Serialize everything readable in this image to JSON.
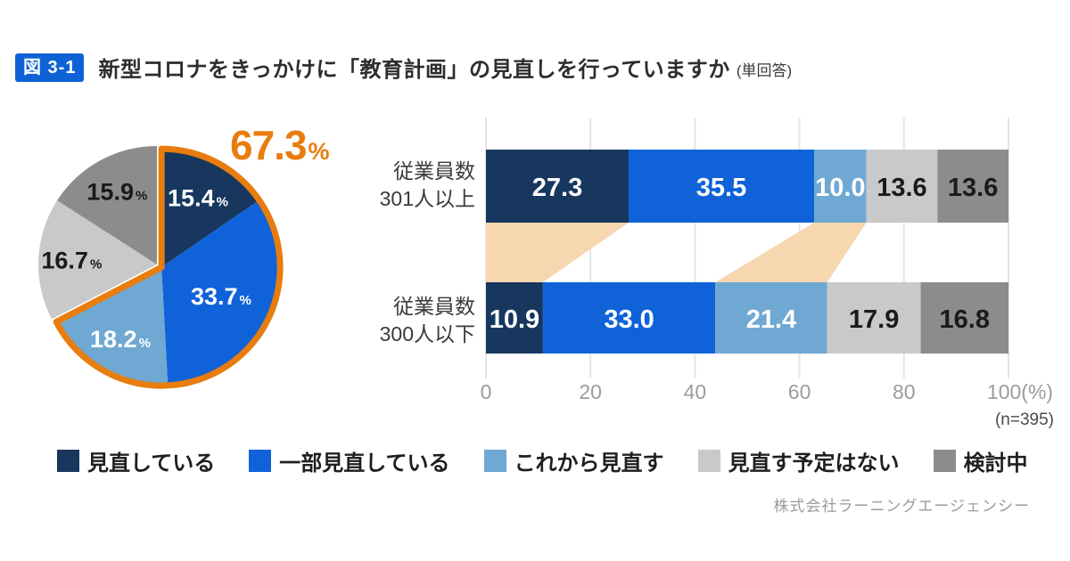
{
  "header": {
    "badge": "図 3-1",
    "title": "新型コロナをきっかけに「教育計画」の見直しを行っていますか",
    "suffix": "(単回答)"
  },
  "colors": {
    "navy": "#17375E",
    "blue": "#0F62D8",
    "light_blue": "#6FA8D2",
    "light_gray": "#C9C9C9",
    "gray": "#8C8C8C",
    "peach": "#F6D7B0",
    "orange": "#E87D0E",
    "grid": "#E4E4E4",
    "badge_bg": "#0E62D6"
  },
  "legend": {
    "items": [
      {
        "label": "見直している",
        "color": "navy"
      },
      {
        "label": "一部見直している",
        "color": "blue"
      },
      {
        "label": "これから見直す",
        "color": "light_blue"
      },
      {
        "label": "見直す予定はない",
        "color": "light_gray"
      },
      {
        "label": "検討中",
        "color": "gray"
      }
    ]
  },
  "chart_data": [
    {
      "type": "pie",
      "start": "top-clockwise",
      "slices": [
        {
          "label": "見直している",
          "value": 15.4,
          "color": "navy",
          "text_color": "#ffffff"
        },
        {
          "label": "一部見直している",
          "value": 33.7,
          "color": "blue",
          "text_color": "#ffffff"
        },
        {
          "label": "これから見直す",
          "value": 18.2,
          "color": "light_blue",
          "text_color": "#ffffff"
        },
        {
          "label": "見直す予定はない",
          "value": 16.7,
          "color": "light_gray",
          "text_color": "#1a1a1a"
        },
        {
          "label": "検討中",
          "value": 15.9,
          "color": "gray",
          "text_color": "#1a1a1a"
        }
      ],
      "unit": "%",
      "highlight": {
        "slice_indexes": [
          0,
          1,
          2
        ],
        "total_value": "67.3",
        "unit": "%",
        "color": "orange"
      }
    },
    {
      "type": "bar",
      "orientation": "horizontal_stacked",
      "categories": [
        [
          "従業員数",
          "301人以上"
        ],
        [
          "従業員数",
          "300人以下"
        ]
      ],
      "series": [
        {
          "name": "見直している",
          "color": "navy",
          "text_color": "#ffffff",
          "values": [
            27.3,
            10.9
          ]
        },
        {
          "name": "一部見直している",
          "color": "blue",
          "text_color": "#ffffff",
          "values": [
            35.5,
            33.0
          ]
        },
        {
          "name": "これから見直す",
          "color": "light_blue",
          "text_color": "#ffffff",
          "values": [
            10.0,
            21.4
          ]
        },
        {
          "name": "見直す予定はない",
          "color": "light_gray",
          "text_color": "#1a1a1a",
          "values": [
            13.6,
            17.9
          ]
        },
        {
          "name": "検討中",
          "color": "gray",
          "text_color": "#1a1a1a",
          "values": [
            13.6,
            16.8
          ]
        }
      ],
      "xlim": [
        0,
        100
      ],
      "ticks": [
        "0",
        "20",
        "40",
        "60",
        "80",
        "100(%)"
      ],
      "note": "(n=395)",
      "grid": true,
      "connectors": [
        {
          "series_index": 0,
          "fill": "peach"
        },
        {
          "series_index": 2,
          "fill": "peach"
        }
      ]
    }
  ],
  "footer": "株式会社ラーニングエージェンシー"
}
